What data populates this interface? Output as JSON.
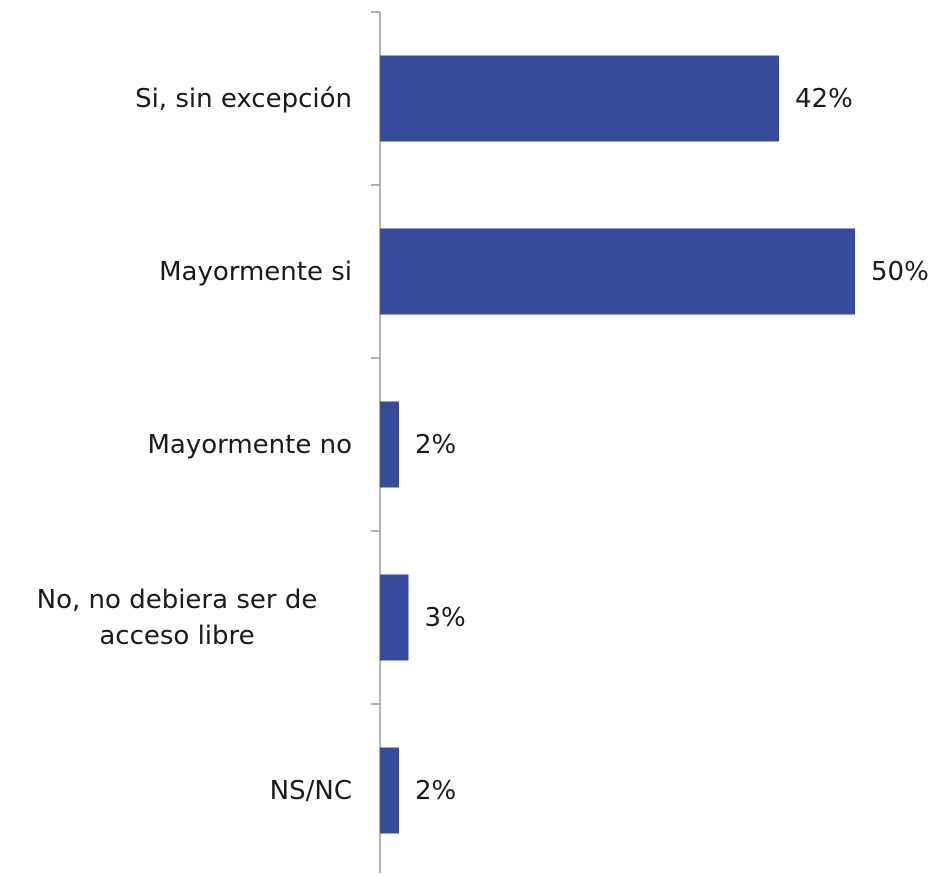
{
  "chart_data": {
    "type": "bar",
    "orientation": "horizontal",
    "categories": [
      "Si, sin excepción",
      "Mayormente si",
      "Mayormente no",
      "No, no debiera ser de acceso libre",
      "NS/NC"
    ],
    "values": [
      42,
      50,
      2,
      3,
      2
    ],
    "value_labels": [
      "42%",
      "50%",
      "2%",
      "3%",
      "2%"
    ],
    "color": "#364b9a"
  }
}
